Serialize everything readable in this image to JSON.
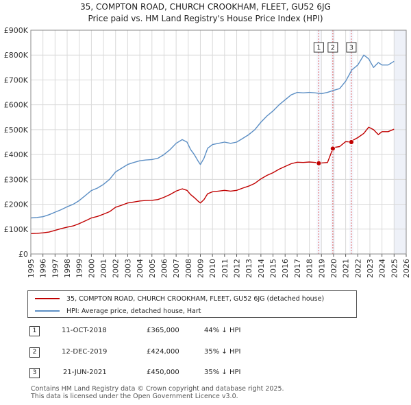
{
  "header": {
    "title": "35, COMPTON ROAD, CHURCH CROOKHAM, FLEET, GU52 6JG",
    "subtitle": "Price paid vs. HM Land Registry's House Price Index (HPI)"
  },
  "chart_data": {
    "type": "line",
    "title": "35, COMPTON ROAD, CHURCH CROOKHAM, FLEET, GU52 6JG",
    "subtitle": "Price paid vs. HM Land Registry's House Price Index (HPI)",
    "xlabel": "",
    "ylabel": "",
    "xlim": [
      1995,
      2026
    ],
    "ylim": [
      0,
      900000
    ],
    "grid": true,
    "y_ticks": [
      {
        "value": 0,
        "label": "£0"
      },
      {
        "value": 100000,
        "label": "£100K"
      },
      {
        "value": 200000,
        "label": "£200K"
      },
      {
        "value": 300000,
        "label": "£300K"
      },
      {
        "value": 400000,
        "label": "£400K"
      },
      {
        "value": 500000,
        "label": "£500K"
      },
      {
        "value": 600000,
        "label": "£600K"
      },
      {
        "value": 700000,
        "label": "£700K"
      },
      {
        "value": 800000,
        "label": "£800K"
      },
      {
        "value": 900000,
        "label": "£900K"
      }
    ],
    "x_ticks": [
      "1995",
      "1996",
      "1997",
      "1998",
      "1999",
      "2000",
      "2001",
      "2002",
      "2003",
      "2004",
      "2005",
      "2006",
      "2007",
      "2008",
      "2009",
      "2010",
      "2011",
      "2012",
      "2013",
      "2014",
      "2015",
      "2016",
      "2017",
      "2018",
      "2019",
      "2020",
      "2021",
      "2022",
      "2023",
      "2024",
      "2025",
      "2026"
    ],
    "series": [
      {
        "name": "HPI: Average price, detached house, Hart",
        "color": "#5b8ec4",
        "x": [
          1995.0,
          1995.5,
          1996.0,
          1996.5,
          1997.0,
          1997.5,
          1998.0,
          1998.5,
          1999.0,
          1999.5,
          2000.0,
          2000.5,
          2001.0,
          2001.5,
          2002.0,
          2002.5,
          2003.0,
          2003.5,
          2004.0,
          2004.5,
          2005.0,
          2005.5,
          2006.0,
          2006.5,
          2007.0,
          2007.5,
          2007.9,
          2008.2,
          2008.5,
          2008.8,
          2009.0,
          2009.3,
          2009.6,
          2010.0,
          2010.5,
          2011.0,
          2011.5,
          2012.0,
          2012.5,
          2013.0,
          2013.5,
          2014.0,
          2014.5,
          2015.0,
          2015.5,
          2016.0,
          2016.5,
          2017.0,
          2017.5,
          2018.0,
          2018.5,
          2019.0,
          2019.5,
          2020.0,
          2020.5,
          2021.0,
          2021.5,
          2022.0,
          2022.5,
          2022.9,
          2023.3,
          2023.7,
          2024.0,
          2024.5,
          2025.0
        ],
        "values": [
          145000,
          147000,
          150000,
          158000,
          168000,
          178000,
          190000,
          200000,
          215000,
          235000,
          255000,
          265000,
          280000,
          300000,
          330000,
          345000,
          360000,
          368000,
          375000,
          378000,
          380000,
          385000,
          400000,
          420000,
          445000,
          460000,
          450000,
          420000,
          400000,
          375000,
          360000,
          385000,
          425000,
          440000,
          445000,
          450000,
          445000,
          450000,
          465000,
          480000,
          500000,
          530000,
          555000,
          575000,
          600000,
          620000,
          640000,
          650000,
          648000,
          650000,
          648000,
          645000,
          650000,
          658000,
          665000,
          695000,
          740000,
          760000,
          800000,
          785000,
          750000,
          770000,
          760000,
          760000,
          775000
        ]
      },
      {
        "name": "35, COMPTON ROAD, CHURCH CROOKHAM, FLEET, GU52 6JG (detached house)",
        "color": "#c00000",
        "x": [
          1995.0,
          1995.5,
          1996.0,
          1996.5,
          1997.0,
          1997.5,
          1998.0,
          1998.5,
          1999.0,
          1999.5,
          2000.0,
          2000.5,
          2001.0,
          2001.5,
          2002.0,
          2002.5,
          2003.0,
          2003.5,
          2004.0,
          2004.5,
          2005.0,
          2005.5,
          2006.0,
          2006.5,
          2007.0,
          2007.5,
          2007.9,
          2008.2,
          2008.5,
          2008.8,
          2009.0,
          2009.3,
          2009.6,
          2010.0,
          2010.5,
          2011.0,
          2011.5,
          2012.0,
          2012.5,
          2013.0,
          2013.5,
          2014.0,
          2014.5,
          2015.0,
          2015.5,
          2016.0,
          2016.5,
          2017.0,
          2017.5,
          2018.0,
          2018.5,
          2018.78,
          2019.0,
          2019.5,
          2019.94,
          2020.0,
          2020.5,
          2021.0,
          2021.47,
          2021.5,
          2022.0,
          2022.5,
          2022.9,
          2023.3,
          2023.7,
          2024.0,
          2024.5,
          2025.0
        ],
        "values": [
          82000,
          83000,
          85000,
          88000,
          95000,
          102000,
          108000,
          113000,
          122000,
          133000,
          145000,
          151000,
          160000,
          170000,
          188000,
          196000,
          205000,
          209000,
          213000,
          215000,
          216000,
          219000,
          228000,
          239000,
          253000,
          262000,
          256000,
          239000,
          227000,
          213000,
          205000,
          219000,
          242000,
          250000,
          253000,
          256000,
          253000,
          256000,
          265000,
          273000,
          284000,
          302000,
          316000,
          327000,
          341000,
          352000,
          363000,
          369000,
          368000,
          370000,
          368000,
          365000,
          366000,
          368000,
          424000,
          428000,
          432000,
          452000,
          450000,
          455000,
          468000,
          485000,
          510000,
          500000,
          480000,
          492000,
          492000,
          502000
        ]
      }
    ],
    "sales": [
      {
        "marker": "1",
        "date": "11-OCT-2018",
        "x": 2018.78,
        "price": 365000,
        "price_label": "£365,000",
        "hpi_diff": "44% ↓ HPI"
      },
      {
        "marker": "2",
        "date": "12-DEC-2019",
        "x": 2019.94,
        "price": 424000,
        "price_label": "£424,000",
        "hpi_diff": "35% ↓ HPI"
      },
      {
        "marker": "3",
        "date": "21-JUN-2021",
        "x": 2021.47,
        "price": 450000,
        "price_label": "£450,000",
        "hpi_diff": "35% ↓ HPI"
      }
    ],
    "legend_position": "bottom"
  },
  "footer": {
    "line1": "Contains HM Land Registry data © Crown copyright and database right 2025.",
    "line2": "This data is licensed under the Open Government Licence v3.0."
  }
}
